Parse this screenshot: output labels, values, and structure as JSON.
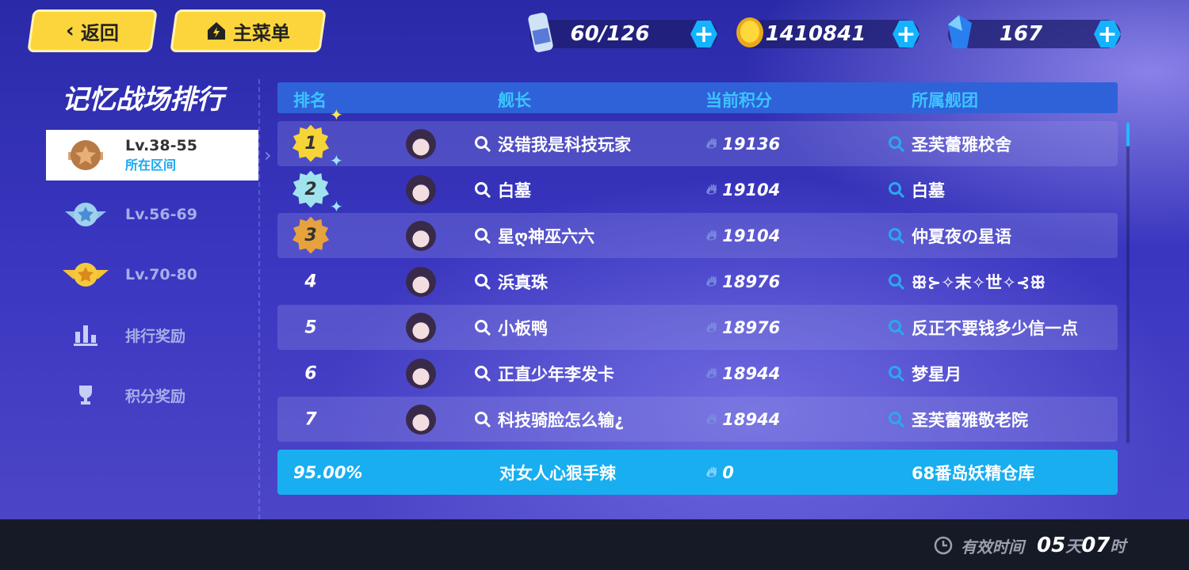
{
  "nav": {
    "back_label": "返回",
    "home_label": "主菜单"
  },
  "resources": [
    {
      "icon": "stamina-drink-icon",
      "value": "60/126"
    },
    {
      "icon": "gold-coin-icon",
      "value": "1410841"
    },
    {
      "icon": "crystal-icon",
      "value": "167"
    }
  ],
  "page_title": "记忆战场排行",
  "sidebar": {
    "items": [
      {
        "label": "Lv.38-55",
        "sub": "所在区间",
        "icon": "bronze-badge-icon",
        "selected": true
      },
      {
        "label": "Lv.56-69",
        "icon": "silver-badge-icon"
      },
      {
        "label": "Lv.70-80",
        "icon": "gold-badge-icon"
      },
      {
        "label": "排行奖励",
        "icon": "bar-chart-icon"
      },
      {
        "label": "积分奖励",
        "icon": "trophy-icon"
      }
    ]
  },
  "table": {
    "headers": [
      "排名",
      "舰长",
      "当前积分",
      "所属舰团"
    ],
    "rows": [
      {
        "rank": "1",
        "name": "没错我是科技玩家",
        "score": "19136",
        "guild": "圣芙蕾雅校舍"
      },
      {
        "rank": "2",
        "name": "白墓",
        "score": "19104",
        "guild": "白墓"
      },
      {
        "rank": "3",
        "name": "星ღ神巫六六",
        "score": "19104",
        "guild": "仲夏夜の星语"
      },
      {
        "rank": "4",
        "name": "浜真珠",
        "score": "18976",
        "guild": "ꕥ⊱✧末✧世✧⊰ꕥ"
      },
      {
        "rank": "5",
        "name": "小板鸭",
        "score": "18976",
        "guild": "反正不要钱多少信一点"
      },
      {
        "rank": "6",
        "name": "正直少年李发卡",
        "score": "18944",
        "guild": "梦星月"
      },
      {
        "rank": "7",
        "name": "科技骑脸怎么输¿",
        "score": "18944",
        "guild": "圣芙蕾雅敬老院"
      }
    ],
    "self": {
      "rank": "95.00%",
      "name": "对女人心狠手辣",
      "score": "0",
      "guild": "68番岛妖精仓库"
    }
  },
  "footer": {
    "label": "有效时间",
    "days": "05",
    "days_unit": "天",
    "hours": "07",
    "hours_unit": "时"
  },
  "colors": {
    "accent": "#18aef0",
    "button": "#fbd53b",
    "gold": "#f7d436",
    "silver": "#9fe3ee",
    "bronze": "#e7a23d"
  }
}
